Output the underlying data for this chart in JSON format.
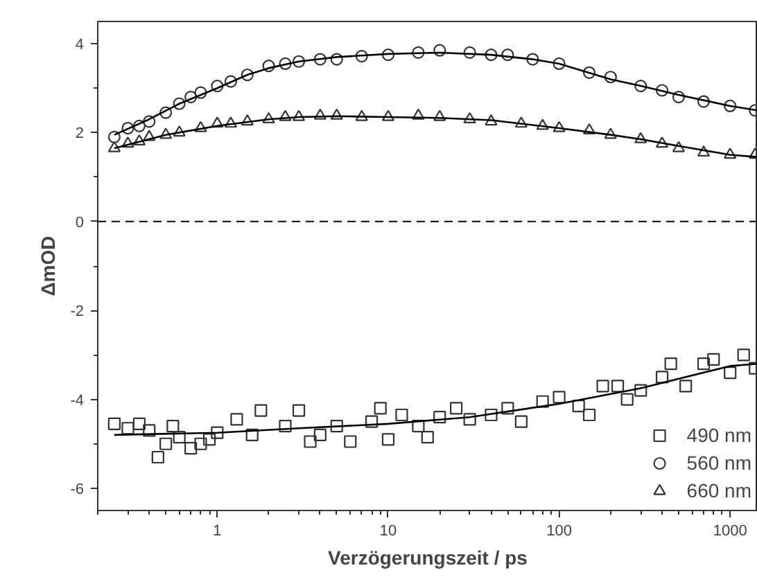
{
  "chart_data": {
    "type": "scatter",
    "xlabel": "Verzögerungszeit / ps",
    "ylabel": "ΔmOD",
    "log": "x",
    "xlim": [
      0.2,
      1450
    ],
    "ylim": [
      -6.5,
      4.5
    ],
    "xticks": [
      1,
      10,
      100,
      1000
    ],
    "yticks": [
      -6,
      -4,
      -2,
      0,
      2,
      4
    ],
    "grid": false,
    "legend": "bottom right",
    "ref_lines": [
      {
        "axis": "y",
        "value": 0,
        "line_style": "dashed",
        "color": "#000000"
      }
    ],
    "series": [
      {
        "name": "490 nm",
        "marker": "square",
        "color": "#333333",
        "x": [
          0.25,
          0.3,
          0.35,
          0.4,
          0.45,
          0.5,
          0.55,
          0.6,
          0.7,
          0.8,
          0.9,
          1,
          1.3,
          1.6,
          1.8,
          2.5,
          3,
          3.5,
          4,
          5,
          6,
          8,
          9,
          10,
          12,
          15,
          17,
          20,
          25,
          30,
          40,
          50,
          60,
          80,
          100,
          130,
          150,
          180,
          220,
          250,
          300,
          400,
          450,
          550,
          700,
          800,
          1000,
          1200,
          1400
        ],
        "values": [
          -4.55,
          -4.65,
          -4.55,
          -4.7,
          -5.3,
          -5.0,
          -4.6,
          -4.85,
          -5.1,
          -5.0,
          -4.9,
          -4.75,
          -4.45,
          -4.8,
          -4.25,
          -4.6,
          -4.25,
          -4.95,
          -4.8,
          -4.6,
          -4.95,
          -4.5,
          -4.2,
          -4.9,
          -4.35,
          -4.6,
          -4.85,
          -4.4,
          -4.2,
          -4.45,
          -4.35,
          -4.2,
          -4.5,
          -4.05,
          -3.95,
          -4.15,
          -4.35,
          -3.7,
          -3.7,
          -4.0,
          -3.8,
          -3.5,
          -3.2,
          -3.7,
          -3.2,
          -3.1,
          -3.4,
          -3.0,
          -3.3
        ]
      },
      {
        "name": "560 nm",
        "marker": "circle",
        "color": "#333333",
        "x": [
          0.25,
          0.3,
          0.35,
          0.4,
          0.5,
          0.6,
          0.7,
          0.8,
          1,
          1.2,
          1.5,
          2,
          2.5,
          3,
          4,
          5,
          7,
          10,
          15,
          20,
          30,
          40,
          50,
          70,
          100,
          150,
          200,
          300,
          400,
          500,
          700,
          1000,
          1400
        ],
        "values": [
          1.9,
          2.1,
          2.15,
          2.25,
          2.45,
          2.65,
          2.8,
          2.9,
          3.05,
          3.15,
          3.3,
          3.5,
          3.55,
          3.6,
          3.65,
          3.65,
          3.72,
          3.75,
          3.8,
          3.85,
          3.8,
          3.75,
          3.75,
          3.65,
          3.55,
          3.35,
          3.25,
          3.05,
          2.95,
          2.8,
          2.7,
          2.6,
          2.5
        ]
      },
      {
        "name": "660 nm",
        "marker": "triangle",
        "color": "#333333",
        "x": [
          0.25,
          0.3,
          0.35,
          0.4,
          0.5,
          0.6,
          0.8,
          1,
          1.2,
          1.5,
          2,
          2.5,
          3,
          4,
          5,
          7,
          10,
          15,
          20,
          30,
          40,
          60,
          80,
          100,
          150,
          200,
          300,
          400,
          500,
          700,
          1000,
          1400
        ],
        "values": [
          1.65,
          1.75,
          1.8,
          1.9,
          1.95,
          2.0,
          2.1,
          2.2,
          2.2,
          2.25,
          2.3,
          2.35,
          2.35,
          2.38,
          2.38,
          2.35,
          2.35,
          2.38,
          2.35,
          2.3,
          2.25,
          2.2,
          2.15,
          2.1,
          2.05,
          1.95,
          1.85,
          1.75,
          1.65,
          1.55,
          1.5,
          1.5
        ]
      },
      {
        "type": "line",
        "color": "#000000",
        "x": [
          0.25,
          1,
          3,
          10,
          30,
          100,
          300,
          1000,
          1450
        ],
        "values": [
          -4.8,
          -4.75,
          -4.65,
          -4.55,
          -4.4,
          -4.1,
          -3.75,
          -3.25,
          -3.2
        ]
      },
      {
        "type": "line",
        "color": "#000000",
        "x": [
          0.25,
          0.4,
          0.6,
          1,
          1.5,
          2,
          3,
          5,
          10,
          20,
          40,
          70,
          100,
          200,
          300,
          500,
          1000,
          1450
        ],
        "values": [
          1.95,
          2.3,
          2.65,
          3.0,
          3.3,
          3.45,
          3.6,
          3.7,
          3.77,
          3.8,
          3.75,
          3.65,
          3.55,
          3.2,
          3.05,
          2.85,
          2.6,
          2.5
        ]
      },
      {
        "type": "line",
        "color": "#000000",
        "x": [
          0.25,
          0.5,
          1,
          2,
          3,
          5,
          10,
          20,
          40,
          100,
          200,
          300,
          500,
          1000,
          1450
        ],
        "values": [
          1.65,
          1.95,
          2.15,
          2.3,
          2.35,
          2.37,
          2.35,
          2.33,
          2.28,
          2.1,
          1.95,
          1.85,
          1.7,
          1.5,
          1.45
        ]
      }
    ]
  }
}
